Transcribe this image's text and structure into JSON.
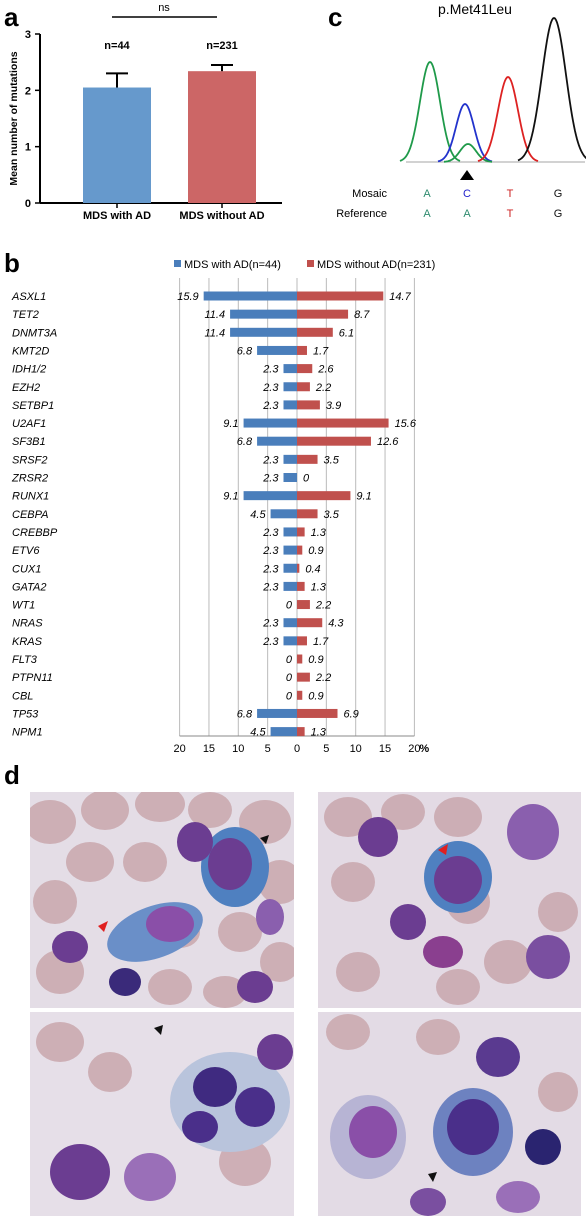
{
  "panels": {
    "a": "a",
    "b": "b",
    "c": "c",
    "d": "d"
  },
  "chart_data": [
    {
      "type": "bar",
      "panel": "a",
      "categories": [
        "MDS with AD",
        "MDS without AD"
      ],
      "values": [
        2.05,
        2.34
      ],
      "errors": [
        0.25,
        0.11
      ],
      "bar_labels": [
        "n=44",
        "n=231"
      ],
      "ylabel": "Mean number of mutations",
      "ylim": [
        0,
        3
      ],
      "yticks": [
        "0",
        "1",
        "2",
        "3"
      ],
      "significance": "ns",
      "colors": [
        "#6699cc",
        "#cc6666"
      ],
      "grid": false
    },
    {
      "type": "bar",
      "panel": "b",
      "orientation": "horizontal-diverging",
      "categories": [
        "ASXL1",
        "TET2",
        "DNMT3A",
        "KMT2D",
        "IDH1/2",
        "EZH2",
        "SETBP1",
        "U2AF1",
        "SF3B1",
        "SRSF2",
        "ZRSR2",
        "RUNX1",
        "CEBPA",
        "CREBBP",
        "ETV6",
        "CUX1",
        "GATA2",
        "WT1",
        "NRAS",
        "KRAS",
        "FLT3",
        "PTPN11",
        "CBL",
        "TP53",
        "NPM1"
      ],
      "series": [
        {
          "name": "MDS with AD(n=44)",
          "color": "#4a7ebb",
          "values": [
            15.9,
            11.4,
            11.4,
            6.8,
            2.3,
            2.3,
            2.3,
            9.1,
            6.8,
            2.3,
            2.3,
            9.1,
            4.5,
            2.3,
            2.3,
            2.3,
            2.3,
            0,
            2.3,
            2.3,
            0,
            0,
            0,
            6.8,
            4.5
          ]
        },
        {
          "name": "MDS without AD(n=231)",
          "color": "#c0504d",
          "values": [
            14.7,
            8.7,
            6.1,
            1.7,
            2.6,
            2.2,
            3.9,
            15.6,
            12.6,
            3.5,
            0,
            9.1,
            3.5,
            1.3,
            0.9,
            0.4,
            1.3,
            2.2,
            4.3,
            1.7,
            0.9,
            2.2,
            0.9,
            6.9,
            1.3
          ]
        }
      ],
      "series_labels": {
        "left": [
          "15.9",
          "11.4",
          "11.4",
          "6.8",
          "2.3",
          "2.3",
          "2.3",
          "9.1",
          "6.8",
          "2.3",
          "2.3",
          "9.1",
          "4.5",
          "2.3",
          "2.3",
          "2.3",
          "2.3",
          "0",
          "2.3",
          "2.3",
          "0",
          "0",
          "0",
          "6.8",
          "4.5"
        ],
        "right": [
          "14.7",
          "8.7",
          "6.1",
          "1.7",
          "2.6",
          "2.2",
          "3.9",
          "15.6",
          "12.6",
          "3.5",
          "0",
          "9.1",
          "3.5",
          "1.3",
          "0.9",
          "0.4",
          "1.3",
          "2.2",
          "4.3",
          "1.7",
          "0.9",
          "2.2",
          "0.9",
          "6.9",
          "1.3"
        ]
      },
      "xticks": [
        "20",
        "15",
        "10",
        "5",
        "0",
        "5",
        "10",
        "15",
        "20"
      ],
      "xtick_values": [
        -20,
        -15,
        -10,
        -5,
        0,
        5,
        10,
        15,
        20
      ],
      "x_unit": "%",
      "legend_position": "top",
      "grid": true
    }
  ],
  "chromatogram": {
    "title": "p.Met41Leu",
    "rows": [
      {
        "label": "Mosaic",
        "bases": [
          "A",
          "C",
          "T",
          "G"
        ],
        "colors": [
          "#2e8b6e",
          "#2222cc",
          "#cc2222",
          "#111111"
        ]
      },
      {
        "label": "Reference",
        "bases": [
          "A",
          "A",
          "T",
          "G"
        ],
        "colors": [
          "#2e8b6e",
          "#2e8b6e",
          "#cc2222",
          "#111111"
        ]
      }
    ],
    "peak_colors": {
      "A": "#1f9a4a",
      "C": "#2233cc",
      "T": "#dd2222",
      "G": "#111111"
    }
  }
}
